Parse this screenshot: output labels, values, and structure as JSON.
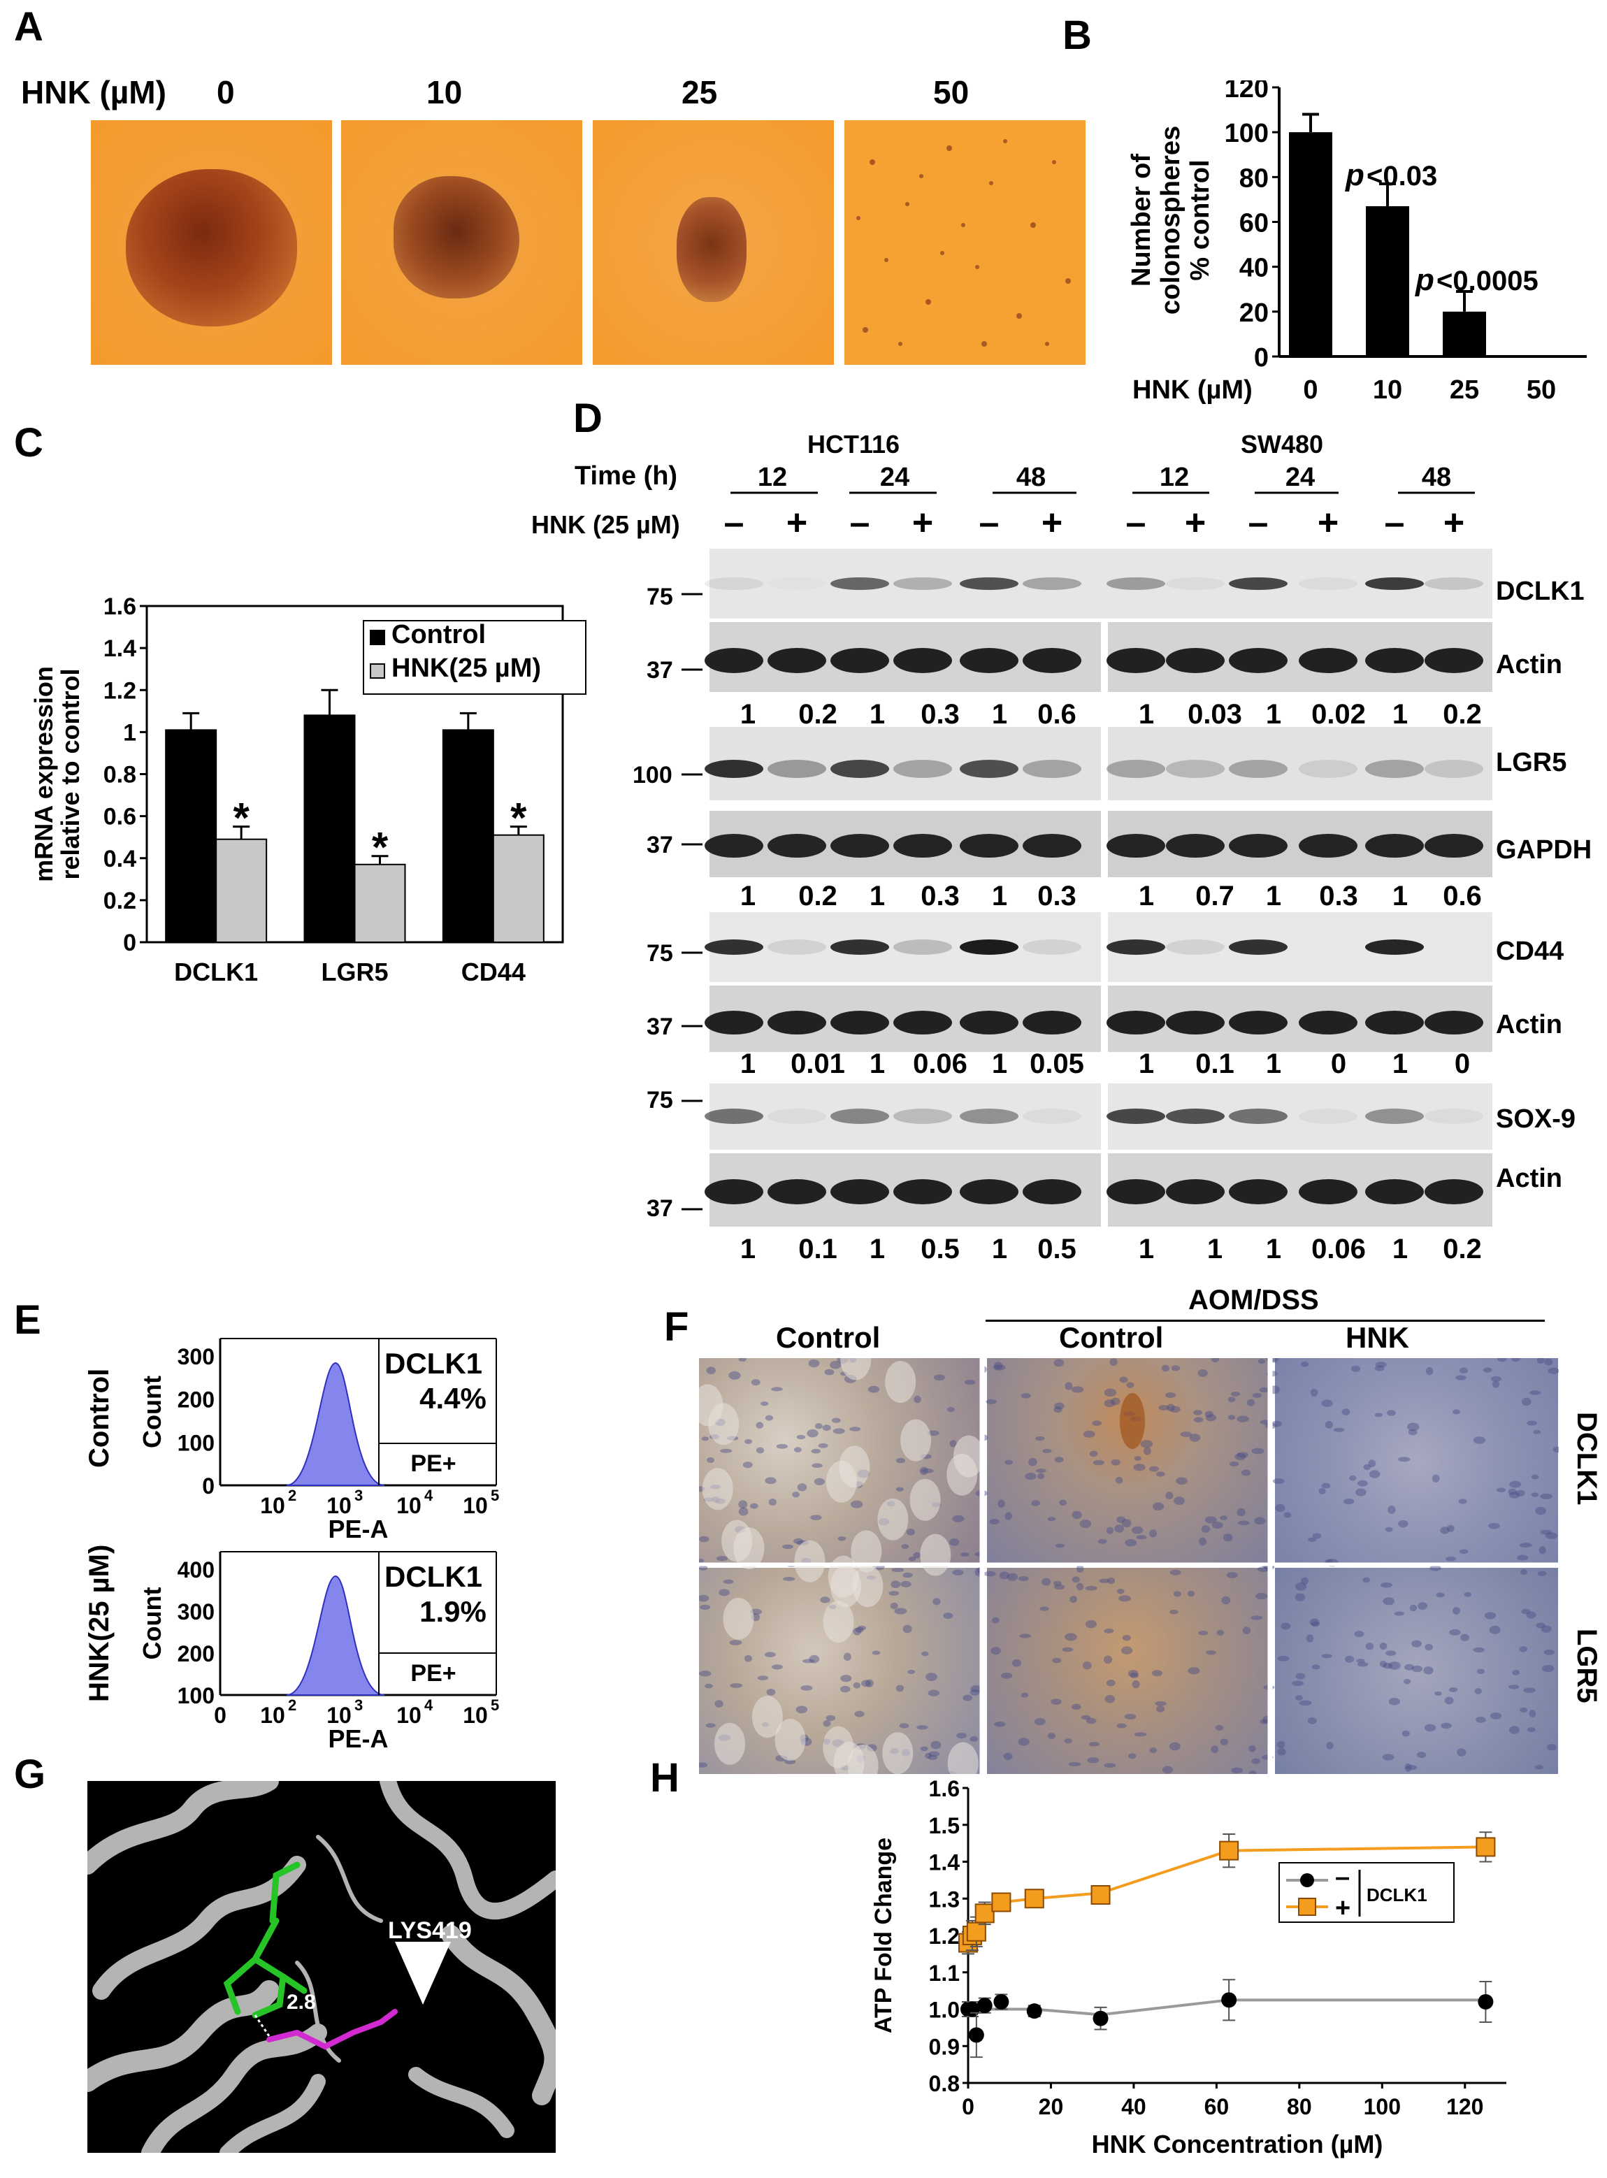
{
  "panels": {
    "A": "A",
    "B": "B",
    "C": "C",
    "D": "D",
    "E": "E",
    "F": "F",
    "G": "G",
    "H": "H"
  },
  "panelA": {
    "hnk_label": "HNK (µM)",
    "doses": [
      "0",
      "10",
      "25",
      "50"
    ]
  },
  "panelB": {
    "chart_data": {
      "type": "bar",
      "categories": [
        "0",
        "10",
        "25",
        "50"
      ],
      "values": [
        100,
        67,
        20,
        0
      ],
      "errors": [
        8,
        10,
        9,
        0
      ],
      "ylim": [
        0,
        120
      ],
      "yticks": [
        "0",
        "20",
        "40",
        "60",
        "80",
        "100",
        "120"
      ],
      "ylabel_lines": [
        "Number of",
        "colonospheres",
        "% control"
      ],
      "xlabel": "HNK (µM)",
      "annotations": [
        {
          "label": "p",
          "text": "<0.03",
          "category": "10"
        },
        {
          "label": "p",
          "text": "<0.0005",
          "category": "25"
        }
      ],
      "bar_color": "#000000"
    }
  },
  "panelC": {
    "chart_data": {
      "type": "bar",
      "categories": [
        "DCLK1",
        "LGR5",
        "CD44"
      ],
      "series": [
        {
          "name": "Control",
          "values": [
            1.01,
            1.08,
            1.01
          ],
          "errors": [
            0.08,
            0.12,
            0.08
          ],
          "color": "#000000"
        },
        {
          "name": "HNK(25 µM)",
          "values": [
            0.49,
            0.37,
            0.51
          ],
          "errors": [
            0.06,
            0.04,
            0.04
          ],
          "color": "#c8c8c8"
        }
      ],
      "ylim": [
        0,
        1.6
      ],
      "yticks": [
        "0",
        "0.2",
        "0.4",
        "0.6",
        "0.8",
        "1",
        "1.2",
        "1.4",
        "1.6"
      ],
      "ylabel_lines": [
        "mRNA expression",
        "relative to control"
      ],
      "significance": "*"
    }
  },
  "panelD": {
    "cell_lines": [
      "HCT116",
      "SW480"
    ],
    "time_label": "Time (h)",
    "times": [
      "12",
      "24",
      "48"
    ],
    "hnk_label": "HNK (25 µM)",
    "signs": [
      "–",
      "+",
      "–",
      "+",
      "–",
      "+"
    ],
    "proteins": [
      "DCLK1",
      "Actin",
      "LGR5",
      "GAPDH",
      "CD44",
      "Actin",
      "SOX-9",
      "Actin"
    ],
    "markers": {
      "dclk1": "75",
      "actin1": "37",
      "lgr5": "100",
      "gapdh": "37",
      "cd44": "75",
      "actin2": "37",
      "sox9": "75",
      "actin3": "37"
    },
    "quant": {
      "r1": [
        "1",
        "0.2",
        "1",
        "0.3",
        "1",
        "0.6",
        "1",
        "0.03",
        "1",
        "0.02",
        "1",
        "0.2"
      ],
      "r2": [
        "1",
        "0.2",
        "1",
        "0.3",
        "1",
        "0.3",
        "1",
        "0.7",
        "1",
        "0.3",
        "1",
        "0.6"
      ],
      "r3": [
        "1",
        "0.01",
        "1",
        "0.06",
        "1",
        "0.05",
        "1",
        "0.1",
        "1",
        "0",
        "1",
        "0"
      ],
      "r4": [
        "1",
        "0.1",
        "1",
        "0.5",
        "1",
        "0.5",
        "1",
        "1",
        "1",
        "0.06",
        "1",
        "0.2"
      ]
    }
  },
  "panelE": {
    "rows": [
      {
        "label": "Control",
        "yticks": [
          "0",
          "100",
          "200",
          "300"
        ],
        "ylabel": "Count",
        "marker": "DCLK1",
        "percent": "4.4%",
        "gate": "PE+"
      },
      {
        "label": "HNK(25 µM)",
        "yticks": [
          "100",
          "200",
          "300",
          "400"
        ],
        "ylabel": "Count",
        "marker": "DCLK1",
        "percent": "1.9%",
        "gate": "PE+"
      }
    ],
    "xlabel": "PE-A",
    "xticks": [
      "0",
      "10",
      "10",
      "10",
      "10"
    ],
    "xexp": [
      "",
      "2",
      "3",
      "4",
      "5"
    ]
  },
  "panelF": {
    "group": "AOM/DSS",
    "cols": [
      "Control",
      "Control",
      "HNK"
    ],
    "rows": [
      "DCLK1",
      "LGR5"
    ]
  },
  "panelG": {
    "residue": "LYS419",
    "distance": "2.8"
  },
  "panelH": {
    "chart_data": {
      "type": "line",
      "xlabel": "HNK Concentration (µM)",
      "ylabel": "ATP Fold Change",
      "xlim": [
        0,
        130
      ],
      "ylim": [
        0.8,
        1.6
      ],
      "xticks": [
        "0",
        "20",
        "40",
        "60",
        "80",
        "100",
        "120"
      ],
      "yticks": [
        "0.8",
        "0.9",
        "1.0",
        "1.1",
        "1.2",
        "1.3",
        "1.4",
        "1.5",
        "1.6"
      ],
      "series": [
        {
          "name": "–",
          "color": "#000000",
          "x": [
            0,
            1,
            2,
            4,
            8,
            16,
            32,
            63,
            125
          ],
          "y": [
            1.0,
            1.0,
            0.93,
            1.01,
            1.02,
            0.995,
            0.975,
            1.025,
            1.02
          ],
          "err": [
            0.02,
            0.02,
            0.06,
            0.02,
            0.02,
            0.015,
            0.03,
            0.055,
            0.055
          ],
          "fit": [
            1.0,
            1.0,
            1.0,
            1.0,
            1.0,
            1.0,
            0.985,
            1.025,
            1.025
          ]
        },
        {
          "name": "+",
          "color": "#f39c1e",
          "x": [
            0,
            1,
            2,
            4,
            8,
            16,
            32,
            63,
            125
          ],
          "y": [
            1.18,
            1.2,
            1.21,
            1.26,
            1.29,
            1.3,
            1.31,
            1.43,
            1.44
          ],
          "err": [
            0.03,
            0.04,
            0.04,
            0.03,
            0.02,
            0.015,
            0.02,
            0.045,
            0.04
          ],
          "fit": [
            1.18,
            1.2,
            1.23,
            1.27,
            1.29,
            1.3,
            1.315,
            1.43,
            1.44
          ]
        }
      ],
      "legend_group": "DCLK1"
    }
  }
}
